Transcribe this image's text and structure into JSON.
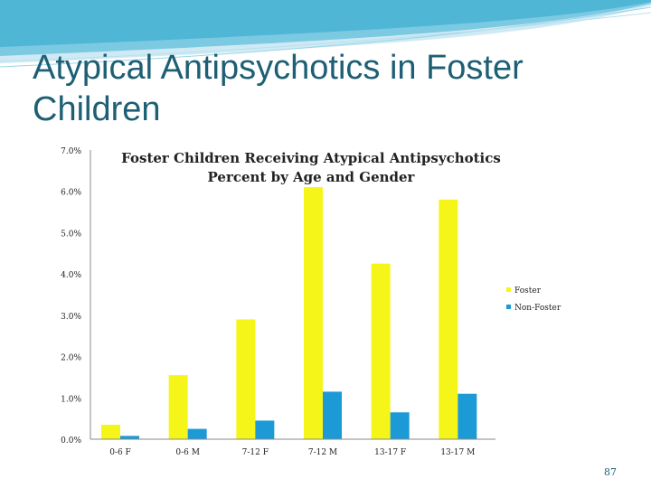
{
  "slide": {
    "title": "Atypical Antipsychotics in Foster Children",
    "page_number": "87"
  },
  "colors": {
    "foster": "#f5f51a",
    "non_foster": "#1c9ad6",
    "title": "#1d5f74",
    "wave": "#4fb6d6"
  },
  "chart_data": {
    "type": "bar",
    "title": "Foster Children Receiving Atypical Antipsychotics",
    "subtitle": "Percent by Age and Gender",
    "categories": [
      "0-6 F",
      "0-6 M",
      "7-12 F",
      "7-12 M",
      "13-17 F",
      "13-17 M"
    ],
    "series": [
      {
        "name": "Foster",
        "values": [
          0.35,
          1.55,
          2.9,
          6.1,
          4.25,
          5.8
        ]
      },
      {
        "name": "Non-Foster",
        "values": [
          0.08,
          0.25,
          0.45,
          1.15,
          0.65,
          1.1
        ]
      }
    ],
    "y_ticks": [
      "0.0%",
      "1.0%",
      "2.0%",
      "3.0%",
      "4.0%",
      "5.0%",
      "6.0%",
      "7.0%"
    ],
    "ylim": [
      0,
      7
    ],
    "xlabel": "",
    "ylabel": "",
    "grid": false,
    "legend_position": "right"
  }
}
